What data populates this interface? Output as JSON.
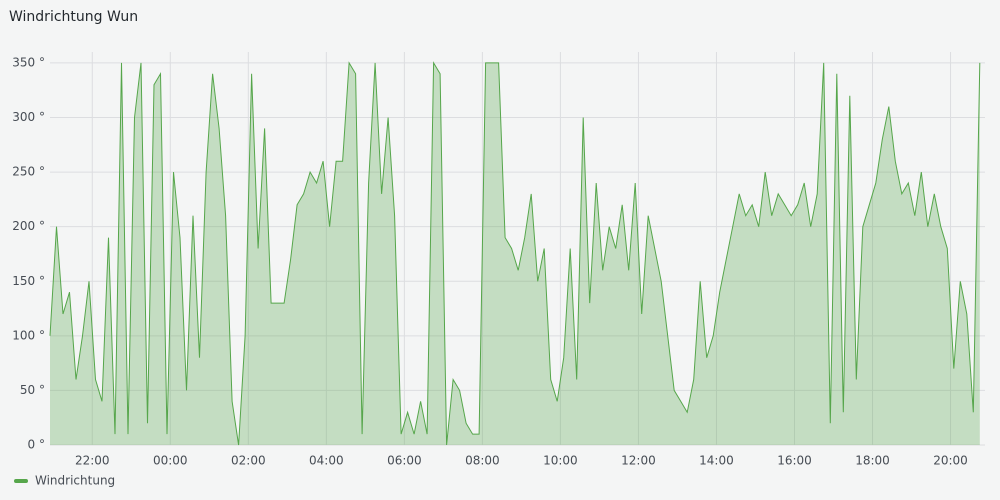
{
  "chart_data": {
    "type": "area",
    "title": "Windrichtung Wun",
    "x": [
      "20:55",
      "21:05",
      "21:15",
      "21:25",
      "21:35",
      "21:45",
      "21:55",
      "22:05",
      "22:15",
      "22:25",
      "22:35",
      "22:45",
      "22:55",
      "23:05",
      "23:15",
      "23:25",
      "23:35",
      "23:45",
      "23:55",
      "00:05",
      "00:15",
      "00:25",
      "00:35",
      "00:45",
      "00:55",
      "01:05",
      "01:15",
      "01:25",
      "01:35",
      "01:45",
      "01:55",
      "02:05",
      "02:15",
      "02:25",
      "02:35",
      "02:45",
      "02:55",
      "03:05",
      "03:15",
      "03:25",
      "03:35",
      "03:45",
      "03:55",
      "04:05",
      "04:15",
      "04:25",
      "04:35",
      "04:45",
      "04:55",
      "05:05",
      "05:15",
      "05:25",
      "05:35",
      "05:45",
      "05:55",
      "06:05",
      "06:15",
      "06:25",
      "06:35",
      "06:45",
      "06:55",
      "07:05",
      "07:15",
      "07:25",
      "07:35",
      "07:45",
      "07:55",
      "08:05",
      "08:15",
      "08:25",
      "08:35",
      "08:45",
      "08:55",
      "09:05",
      "09:15",
      "09:25",
      "09:35",
      "09:45",
      "09:55",
      "10:05",
      "10:15",
      "10:25",
      "10:35",
      "10:45",
      "10:55",
      "11:05",
      "11:15",
      "11:25",
      "11:35",
      "11:45",
      "11:55",
      "12:05",
      "12:15",
      "12:25",
      "12:35",
      "12:45",
      "12:55",
      "13:05",
      "13:15",
      "13:25",
      "13:35",
      "13:45",
      "13:55",
      "14:05",
      "14:15",
      "14:25",
      "14:35",
      "14:45",
      "14:55",
      "15:05",
      "15:15",
      "15:25",
      "15:35",
      "15:45",
      "15:55",
      "16:05",
      "16:15",
      "16:25",
      "16:35",
      "16:45",
      "16:55",
      "17:05",
      "17:15",
      "17:25",
      "17:35",
      "17:45",
      "17:55",
      "18:05",
      "18:15",
      "18:25",
      "18:35",
      "18:45",
      "18:55",
      "19:05",
      "19:15",
      "19:25",
      "19:35",
      "19:45",
      "19:55",
      "20:05",
      "20:15",
      "20:25",
      "20:35",
      "20:45"
    ],
    "series": [
      {
        "name": "Windrichtung",
        "color": "#56a64b",
        "values": [
          100,
          200,
          120,
          140,
          60,
          100,
          150,
          60,
          40,
          190,
          10,
          350,
          10,
          300,
          350,
          20,
          330,
          340,
          10,
          250,
          190,
          50,
          210,
          80,
          250,
          340,
          290,
          210,
          40,
          0,
          100,
          340,
          180,
          290,
          130,
          130,
          130,
          170,
          220,
          230,
          250,
          240,
          260,
          200,
          260,
          260,
          350,
          340,
          10,
          240,
          350,
          230,
          300,
          210,
          10,
          30,
          10,
          40,
          10,
          350,
          340,
          0,
          60,
          50,
          20,
          10,
          10,
          350,
          350,
          350,
          190,
          180,
          160,
          190,
          230,
          150,
          180,
          60,
          40,
          80,
          180,
          60,
          300,
          130,
          240,
          160,
          200,
          180,
          220,
          160,
          240,
          120,
          210,
          180,
          150,
          100,
          50,
          40,
          30,
          60,
          150,
          80,
          100,
          140,
          170,
          200,
          230,
          210,
          220,
          200,
          250,
          210,
          230,
          220,
          210,
          220,
          240,
          200,
          230,
          350,
          20,
          340,
          30,
          320,
          60,
          200,
          220,
          240,
          280,
          310,
          260,
          230,
          240,
          210,
          250,
          200,
          230,
          200,
          180,
          70,
          150,
          120,
          30,
          350
        ]
      }
    ],
    "xlim": [
      "20:55",
      "20:53"
    ],
    "xticks": [
      "22:00",
      "00:00",
      "02:00",
      "04:00",
      "06:00",
      "08:00",
      "10:00",
      "12:00",
      "14:00",
      "16:00",
      "18:00",
      "20:00"
    ],
    "ylim": [
      0,
      360
    ],
    "yticks": [
      {
        "value": 0,
        "label": "0 °"
      },
      {
        "value": 50,
        "label": "50 °"
      },
      {
        "value": 100,
        "label": "100 °"
      },
      {
        "value": 150,
        "label": "150 °"
      },
      {
        "value": 200,
        "label": "200 °"
      },
      {
        "value": 250,
        "label": "250 °"
      },
      {
        "value": 300,
        "label": "300 °"
      },
      {
        "value": 350,
        "label": "350 °"
      }
    ],
    "grid": true
  }
}
